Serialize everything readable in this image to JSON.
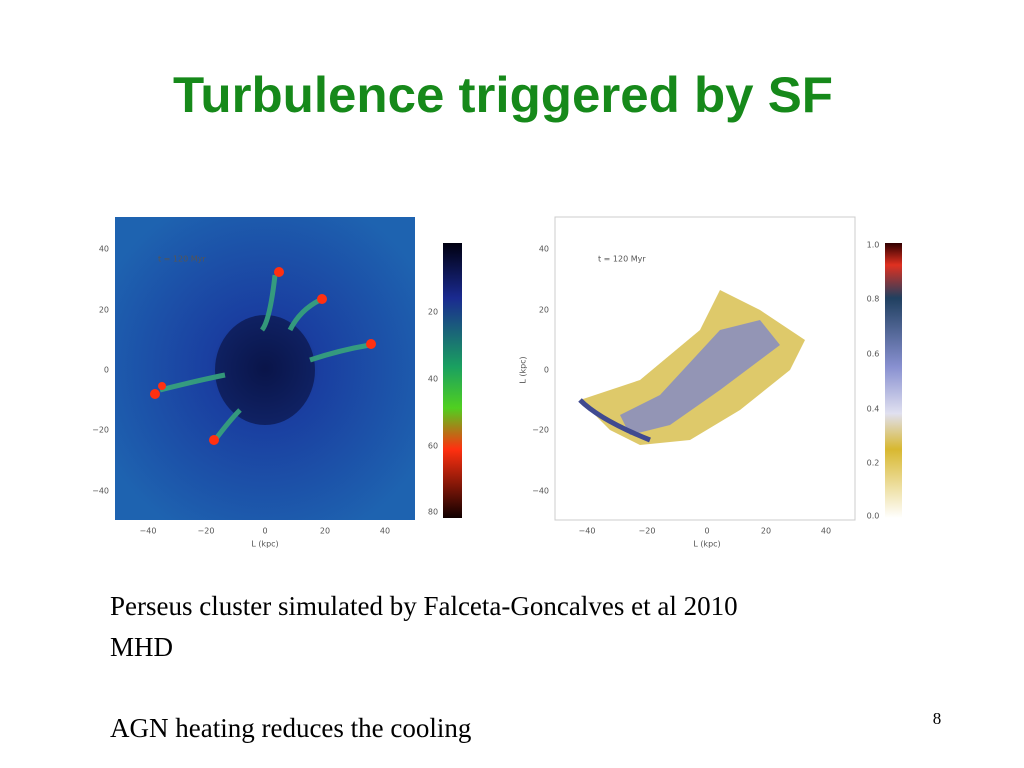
{
  "title": "Turbulence triggered by SF",
  "figures": [
    {
      "annotation": "t = 120 Myr",
      "x_label": "L (kpc)",
      "x_ticks": [
        "−40",
        "−20",
        "0",
        "20",
        "40"
      ],
      "y_ticks": [
        "40",
        "20",
        "0",
        "−20",
        "−40"
      ],
      "colorbar_ticks": [
        "20",
        "40",
        "60",
        "80"
      ]
    },
    {
      "annotation": "t = 120 Myr",
      "x_label": "L (kpc)",
      "y_label": "L (kpc)",
      "x_ticks": [
        "−40",
        "−20",
        "0",
        "20",
        "40"
      ],
      "y_ticks": [
        "40",
        "20",
        "0",
        "−20",
        "−40"
      ],
      "colorbar_ticks": [
        "1.0",
        "0.8",
        "0.6",
        "0.4",
        "0.2",
        "0.0"
      ]
    }
  ],
  "body": [
    "Perseus cluster simulated by  Falceta-Goncalves et al 2010",
    "MHD",
    "AGN heating reduces the cooling"
  ],
  "page_number": "8"
}
